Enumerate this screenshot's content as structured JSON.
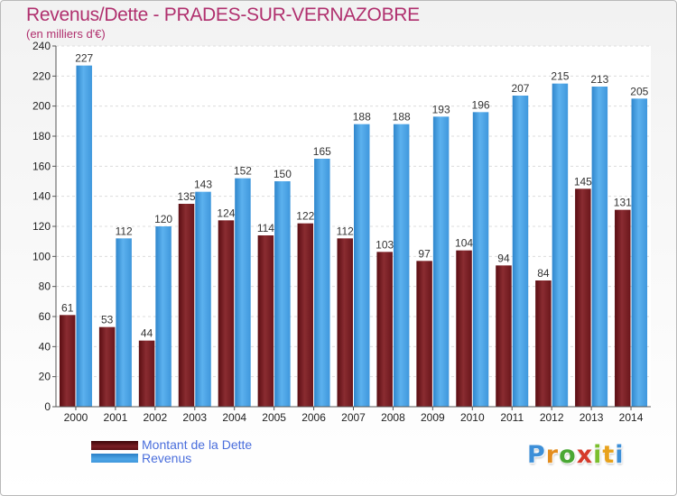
{
  "chart_data": {
    "type": "bar",
    "title": "Revenus/Dette - PRADES-SUR-VERNAZOBRE",
    "subtitle": "(en milliers d'€)",
    "categories": [
      "2000",
      "2001",
      "2002",
      "2003",
      "2004",
      "2005",
      "2006",
      "2007",
      "2008",
      "2009",
      "2010",
      "2011",
      "2012",
      "2013",
      "2014"
    ],
    "series": [
      {
        "name": "Montant de la Dette",
        "color": "#7a1e24",
        "values": [
          61,
          53,
          44,
          135,
          124,
          114,
          122,
          112,
          103,
          97,
          104,
          94,
          84,
          145,
          131
        ]
      },
      {
        "name": "Revenus",
        "color": "#4ea6e6",
        "values": [
          227,
          112,
          120,
          143,
          152,
          150,
          165,
          188,
          188,
          193,
          196,
          207,
          215,
          213,
          205
        ]
      }
    ],
    "ylim": [
      0,
      240
    ],
    "yticks": [
      0,
      20,
      40,
      60,
      80,
      100,
      120,
      140,
      160,
      180,
      200,
      220,
      240
    ],
    "grid": true,
    "legend": "bottom-left"
  },
  "logo": {
    "letters": [
      "P",
      "r",
      "o",
      "x",
      "i",
      "t",
      "i"
    ],
    "colors": [
      "#3d8fd8",
      "#e38d1e",
      "#4aa834",
      "#d63a2a",
      "#7bbf2e",
      "#e8a21c",
      "#3d8fd8"
    ]
  }
}
